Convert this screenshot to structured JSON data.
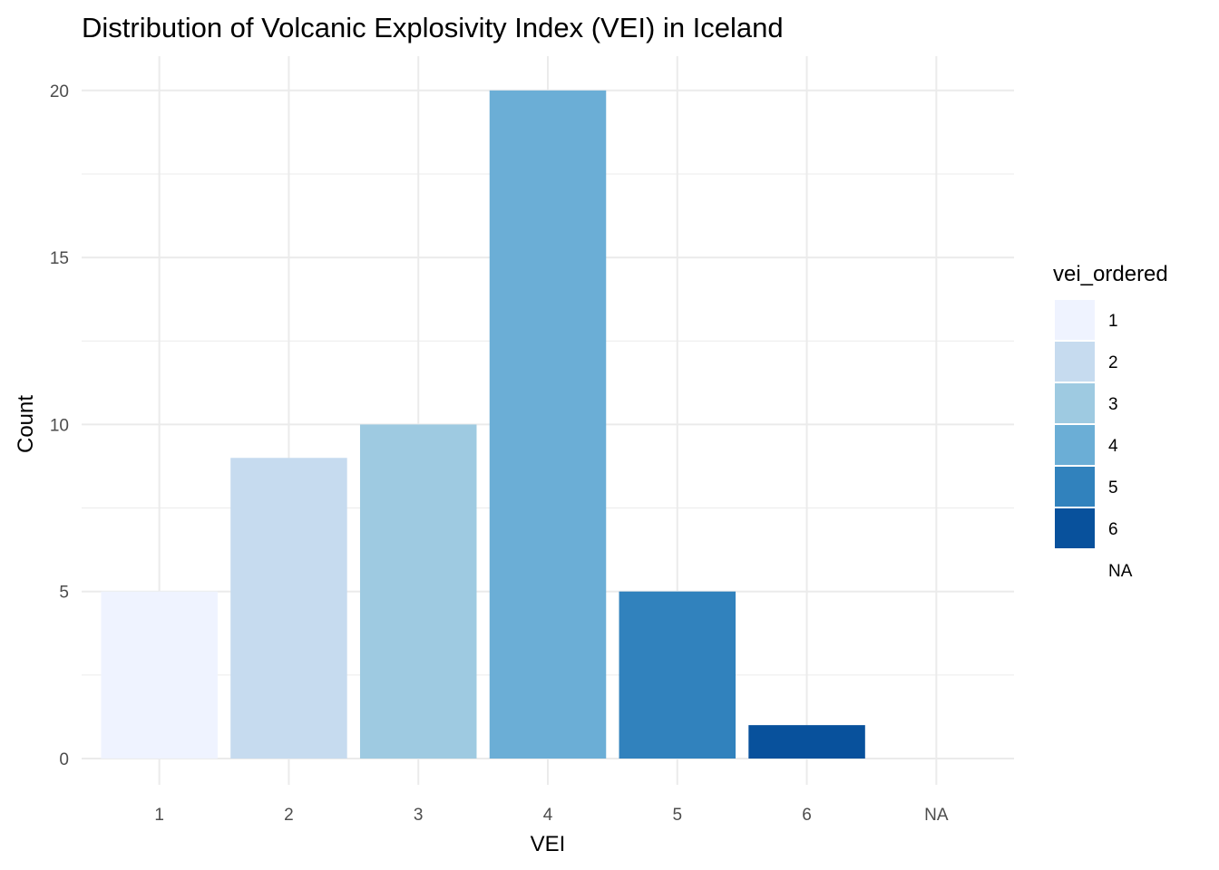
{
  "chart_data": {
    "type": "bar",
    "title": "Distribution of Volcanic Explosivity Index (VEI) in Iceland",
    "xlabel": "VEI",
    "ylabel": "Count",
    "categories": [
      "1",
      "2",
      "3",
      "4",
      "5",
      "6",
      "NA"
    ],
    "values": [
      5,
      9,
      10,
      20,
      5,
      1,
      0
    ],
    "ylim": [
      0,
      21
    ],
    "yticks": [
      0,
      5,
      10,
      15,
      20
    ],
    "grid": true,
    "legend": {
      "title": "vei_ordered",
      "position": "right",
      "entries": [
        {
          "label": "1",
          "color": "#eff3ff"
        },
        {
          "label": "2",
          "color": "#c6dbef"
        },
        {
          "label": "3",
          "color": "#9ecae1"
        },
        {
          "label": "4",
          "color": "#6baed6"
        },
        {
          "label": "5",
          "color": "#3182bd"
        },
        {
          "label": "6",
          "color": "#08519c"
        },
        {
          "label": "NA",
          "color": "none"
        }
      ]
    }
  }
}
